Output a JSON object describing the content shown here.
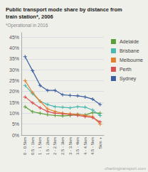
{
  "chart_data": {
    "type": "line",
    "title": "Public transport mode share by distance from\ntrain station*, 2006",
    "subtitle": "*Operational in 2016",
    "annotations": [
      "chartingtransport.com"
    ],
    "categories": [
      "0 - 0.5km",
      "0.5 - 1km",
      "1 - 1.5km",
      "1.5 - 2km",
      "2 - 2.5km",
      "2.5 - 3km",
      "3 - 3.5km",
      "3.5 - 4km",
      "4 - 4.5km",
      "4.5 - 5km",
      "5km +"
    ],
    "series": [
      {
        "name": "Adelaide",
        "color": "#5c9e3a",
        "values": [
          0.13,
          0.107,
          0.1,
          0.093,
          0.09,
          0.088,
          0.09,
          0.095,
          0.092,
          0.103,
          0.1
        ]
      },
      {
        "name": "Brisbane",
        "color": "#4ab8b0",
        "values": [
          0.228,
          0.19,
          0.155,
          0.14,
          0.13,
          0.128,
          0.125,
          0.13,
          0.128,
          0.115,
          0.09
        ]
      },
      {
        "name": "Melbourne",
        "color": "#e08030",
        "values": [
          0.25,
          0.195,
          0.155,
          0.12,
          0.108,
          0.1,
          0.098,
          0.095,
          0.09,
          0.085,
          0.05
        ]
      },
      {
        "name": "Perth",
        "color": "#d95050",
        "values": [
          0.175,
          0.148,
          0.125,
          0.108,
          0.1,
          0.098,
          0.093,
          0.09,
          0.085,
          0.08,
          0.06
        ]
      },
      {
        "name": "Sydney",
        "color": "#3a5fa0",
        "values": [
          0.36,
          0.295,
          0.228,
          0.205,
          0.205,
          0.185,
          0.182,
          0.18,
          0.175,
          0.165,
          0.14
        ]
      }
    ],
    "ylim": [
      0,
      0.47
    ],
    "yticks": [
      {
        "value": 0.0,
        "label": "0%"
      },
      {
        "value": 0.05,
        "label": "5%"
      },
      {
        "value": 0.1,
        "label": "10%"
      },
      {
        "value": 0.15,
        "label": "15%"
      },
      {
        "value": 0.2,
        "label": "20%"
      },
      {
        "value": 0.25,
        "label": "25%"
      },
      {
        "value": 0.3,
        "label": "30%"
      },
      {
        "value": 0.35,
        "label": "35%"
      },
      {
        "value": 0.4,
        "label": "40%"
      },
      {
        "value": 0.45,
        "label": "45%"
      }
    ],
    "grid": true,
    "legend": "upper right",
    "marker": "plus"
  }
}
